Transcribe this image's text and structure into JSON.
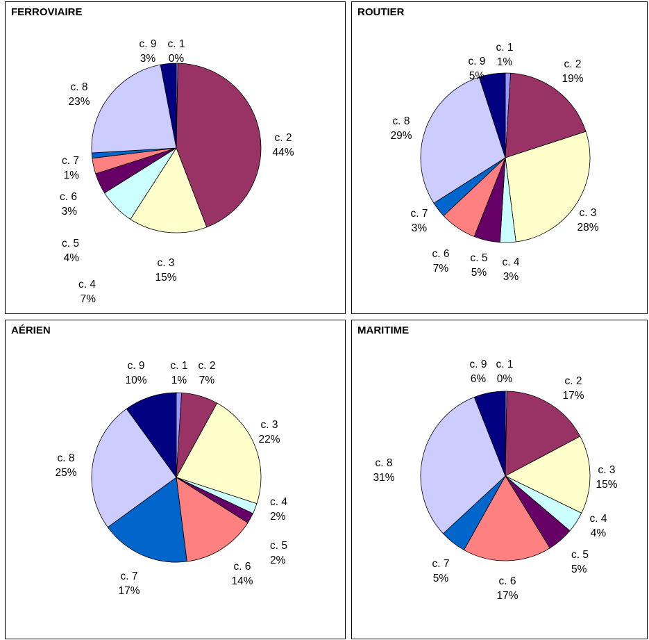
{
  "colors": {
    "c. 1": "#9999ff",
    "c. 2": "#993366",
    "c. 3": "#ffffcc",
    "c. 4": "#ccffff",
    "c. 5": "#660066",
    "c. 6": "#ff8080",
    "c. 7": "#0066cc",
    "c. 8": "#ccccff",
    "c. 9": "#000080"
  },
  "chart_data": [
    {
      "type": "pie",
      "title": "FERROVIAIRE",
      "labels": [
        "c. 1",
        "c. 2",
        "c. 3",
        "c. 4",
        "c. 5",
        "c. 6",
        "c. 7",
        "c. 8",
        "c. 9"
      ],
      "values": [
        0.3,
        44,
        15,
        7,
        4,
        3,
        1,
        23,
        3
      ],
      "display": [
        "0%",
        "44%",
        "15%",
        "7%",
        "4%",
        "3%",
        "1%",
        "23%",
        "3%"
      ]
    },
    {
      "type": "pie",
      "title": "ROUTIER",
      "labels": [
        "c. 1",
        "c. 2",
        "c. 3",
        "c. 4",
        "c. 5",
        "c. 6",
        "c. 7",
        "c. 8",
        "c. 9"
      ],
      "values": [
        1,
        19,
        28,
        3,
        5,
        7,
        3,
        29,
        5
      ],
      "display": [
        "1%",
        "19%",
        "28%",
        "3%",
        "5%",
        "7%",
        "3%",
        "29%",
        "5%"
      ]
    },
    {
      "type": "pie",
      "title": "AÉRIEN",
      "labels": [
        "c. 1",
        "c. 2",
        "c. 3",
        "c. 4",
        "c. 5",
        "c. 6",
        "c. 7",
        "c. 8",
        "c. 9"
      ],
      "values": [
        1,
        7,
        22,
        2,
        2,
        14,
        17,
        25,
        10
      ],
      "display": [
        "1%",
        "7%",
        "22%",
        "2%",
        "2%",
        "14%",
        "17%",
        "25%",
        "10%"
      ]
    },
    {
      "type": "pie",
      "title": "MARITIME",
      "labels": [
        "c. 1",
        "c. 2",
        "c. 3",
        "c. 4",
        "c. 5",
        "c. 6",
        "c. 7",
        "c. 8",
        "c. 9"
      ],
      "values": [
        0.3,
        17,
        15,
        4,
        5,
        17,
        5,
        31,
        6
      ],
      "display": [
        "0%",
        "17%",
        "15%",
        "4%",
        "5%",
        "17%",
        "5%",
        "31%",
        "6%"
      ]
    }
  ]
}
